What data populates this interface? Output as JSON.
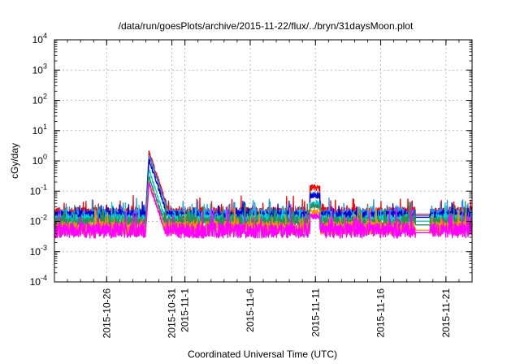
{
  "chart_data": {
    "type": "line",
    "title": "/data/run/goesPlots/archive/2015-11-22/flux/../bryn/31daysMoon.plot",
    "xlabel": "Coordinated Universal Time (UTC)",
    "ylabel": "cGy/day",
    "y_scale": "log",
    "ylim": [
      0.0001,
      10000
    ],
    "y_ticks": [
      {
        "base": "10",
        "exp": "-4",
        "value": 0.0001
      },
      {
        "base": "10",
        "exp": "-3",
        "value": 0.001
      },
      {
        "base": "10",
        "exp": "-2",
        "value": 0.01
      },
      {
        "base": "10",
        "exp": "-1",
        "value": 0.1
      },
      {
        "base": "10",
        "exp": "0",
        "value": 1
      },
      {
        "base": "10",
        "exp": "1",
        "value": 10
      },
      {
        "base": "10",
        "exp": "2",
        "value": 100
      },
      {
        "base": "10",
        "exp": "3",
        "value": 1000
      },
      {
        "base": "10",
        "exp": "4",
        "value": 10000
      }
    ],
    "xlim": [
      "2015-10-22",
      "2015-11-23"
    ],
    "x_ticks": [
      "2015-10-26",
      "2015-10-31",
      "2015-11-1",
      "2015-11-6",
      "2015-11-11",
      "2015-11-16",
      "2015-11-21"
    ],
    "x_tick_dates": [
      "2015-10-26",
      "2015-10-31",
      "2015-11-01",
      "2015-11-06",
      "2015-11-11",
      "2015-11-16",
      "2015-11-21"
    ],
    "grid": true,
    "legend": "none",
    "series": [
      {
        "color": "#ff0000",
        "baseline": 0.02,
        "noise": 0.33,
        "peak": 2.0,
        "spike": 0.13
      },
      {
        "color": "#1e90ff",
        "baseline": 0.018,
        "noise": 0.3,
        "peak": 1.5,
        "spike": 0.08
      },
      {
        "color": "#0000cd",
        "baseline": 0.016,
        "noise": 0.28,
        "peak": 1.1,
        "spike": 0.07
      },
      {
        "color": "#00ced1",
        "baseline": 0.012,
        "noise": 0.33,
        "peak": 0.5,
        "spike": 0.04
      },
      {
        "color": "#2e8b57",
        "baseline": 0.009,
        "noise": 0.42,
        "peak": 0.3,
        "spike": 0.03
      },
      {
        "color": "#ff8c00",
        "baseline": 0.006,
        "noise": 0.45,
        "peak": 0.2,
        "spike": 0.02
      },
      {
        "color": "#ff00ff",
        "baseline": 0.005,
        "noise": 0.5,
        "peak": 0.18,
        "spike": 0.015
      }
    ],
    "events": {
      "solar_event_start": "2015-10-29T00:00",
      "solar_event_peak": "2015-10-29T06:00",
      "second_event_start": "2015-11-10T14:00",
      "second_event_end": "2015-11-11T08:00",
      "data_gap_start": "2015-11-18T16:00",
      "data_gap_end": "2015-11-19T18:00"
    }
  }
}
